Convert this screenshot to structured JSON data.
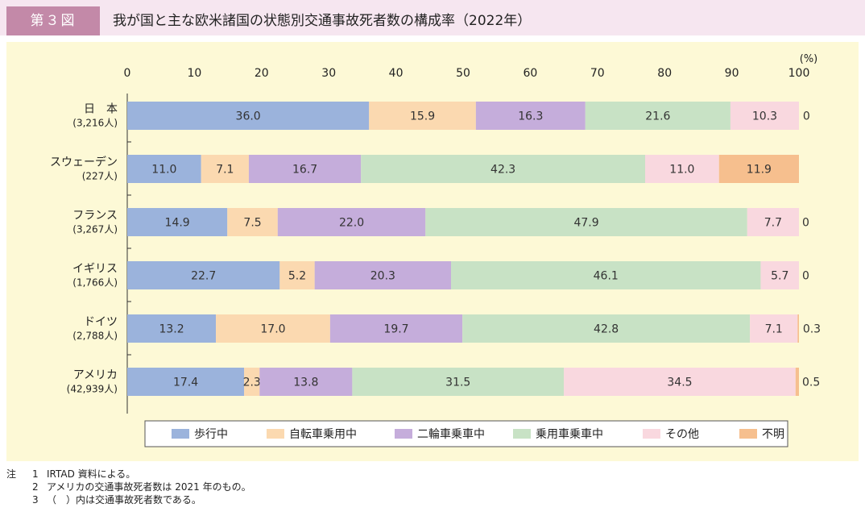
{
  "header": {
    "badge": "第３図",
    "title": "我が国と主な欧米諸国の状態別交通事故死者数の構成率（2022年）"
  },
  "colors": {
    "header_bg": "#f6e6f0",
    "badge_bg": "#c389a8",
    "plot_bg": "#fdf9d6",
    "series": [
      "#9bb3dc",
      "#fbd9b0",
      "#c5addb",
      "#c8e2c5",
      "#f9d8df",
      "#f6bf8e"
    ]
  },
  "chart_data": {
    "type": "bar",
    "orientation": "horizontal",
    "stacked": true,
    "unit_label": "(%)",
    "xlim": [
      0,
      100
    ],
    "xticks": [
      "0",
      "10",
      "20",
      "30",
      "40",
      "50",
      "60",
      "70",
      "80",
      "90",
      "100"
    ],
    "categories": [
      {
        "name": "日　本",
        "count": "(3,216人)"
      },
      {
        "name": "スウェーデン",
        "count": "(227人)"
      },
      {
        "name": "フランス",
        "count": "(3,267人)"
      },
      {
        "name": "イギリス",
        "count": "(1,766人)"
      },
      {
        "name": "ドイツ",
        "count": "(2,788人)"
      },
      {
        "name": "アメリカ",
        "count": "(42,939人)"
      }
    ],
    "series": [
      {
        "name": "歩行中",
        "values": [
          36.0,
          11.0,
          14.9,
          22.7,
          13.2,
          17.4
        ],
        "labels": [
          "36.0",
          "11.0",
          "14.9",
          "22.7",
          "13.2",
          "17.4"
        ]
      },
      {
        "name": "自転車乗用中",
        "values": [
          15.9,
          7.1,
          7.5,
          5.2,
          17.0,
          2.3
        ],
        "labels": [
          "15.9",
          "7.1",
          "7.5",
          "5.2",
          "17.0",
          "2.3"
        ]
      },
      {
        "name": "二輪車乗車中",
        "values": [
          16.3,
          16.7,
          22.0,
          20.3,
          19.7,
          13.8
        ],
        "labels": [
          "16.3",
          "16.7",
          "22.0",
          "20.3",
          "19.7",
          "13.8"
        ]
      },
      {
        "name": "乗用車乗車中",
        "values": [
          21.6,
          42.3,
          47.9,
          46.1,
          42.8,
          31.5
        ],
        "labels": [
          "21.6",
          "42.3",
          "47.9",
          "46.1",
          "42.8",
          "31.5"
        ]
      },
      {
        "name": "その他",
        "values": [
          10.3,
          11.0,
          7.7,
          5.7,
          7.1,
          34.5
        ],
        "labels": [
          "10.3",
          "11.0",
          "7.7",
          "5.7",
          "7.1",
          "34.5"
        ]
      },
      {
        "name": "不明",
        "values": [
          0,
          11.9,
          0,
          0,
          0.3,
          0.5
        ],
        "labels": [
          "0",
          "11.9",
          "0",
          "0",
          "0.3",
          "0.5"
        ]
      }
    ],
    "legend_position": "bottom",
    "grid": false
  },
  "notes": {
    "lead": "注",
    "items": [
      {
        "num": "1",
        "text": "IRTAD 資料による。"
      },
      {
        "num": "2",
        "text": "アメリカの交通事故死者数は 2021 年のもの。"
      },
      {
        "num": "3",
        "text": "（　）内は交通事故死者数である。"
      }
    ]
  }
}
